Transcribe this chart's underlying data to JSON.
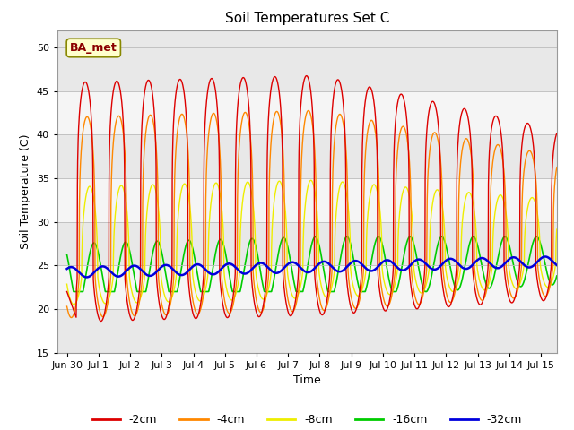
{
  "title": "Soil Temperatures Set C",
  "xlabel": "Time",
  "ylabel": "Soil Temperature (C)",
  "ylim": [
    15,
    52
  ],
  "yticks": [
    15,
    20,
    25,
    30,
    35,
    40,
    45,
    50
  ],
  "annotation": "BA_met",
  "series_colors": [
    "#dd0000",
    "#ff8800",
    "#eeee00",
    "#00cc00",
    "#0000dd"
  ],
  "series_labels": [
    "-2cm",
    "-4cm",
    "-8cm",
    "-16cm",
    "-32cm"
  ],
  "series_linewidths": [
    1.0,
    1.0,
    1.0,
    1.2,
    1.8
  ],
  "title_fontsize": 11,
  "tick_label_fontsize": 8,
  "axis_label_fontsize": 9
}
